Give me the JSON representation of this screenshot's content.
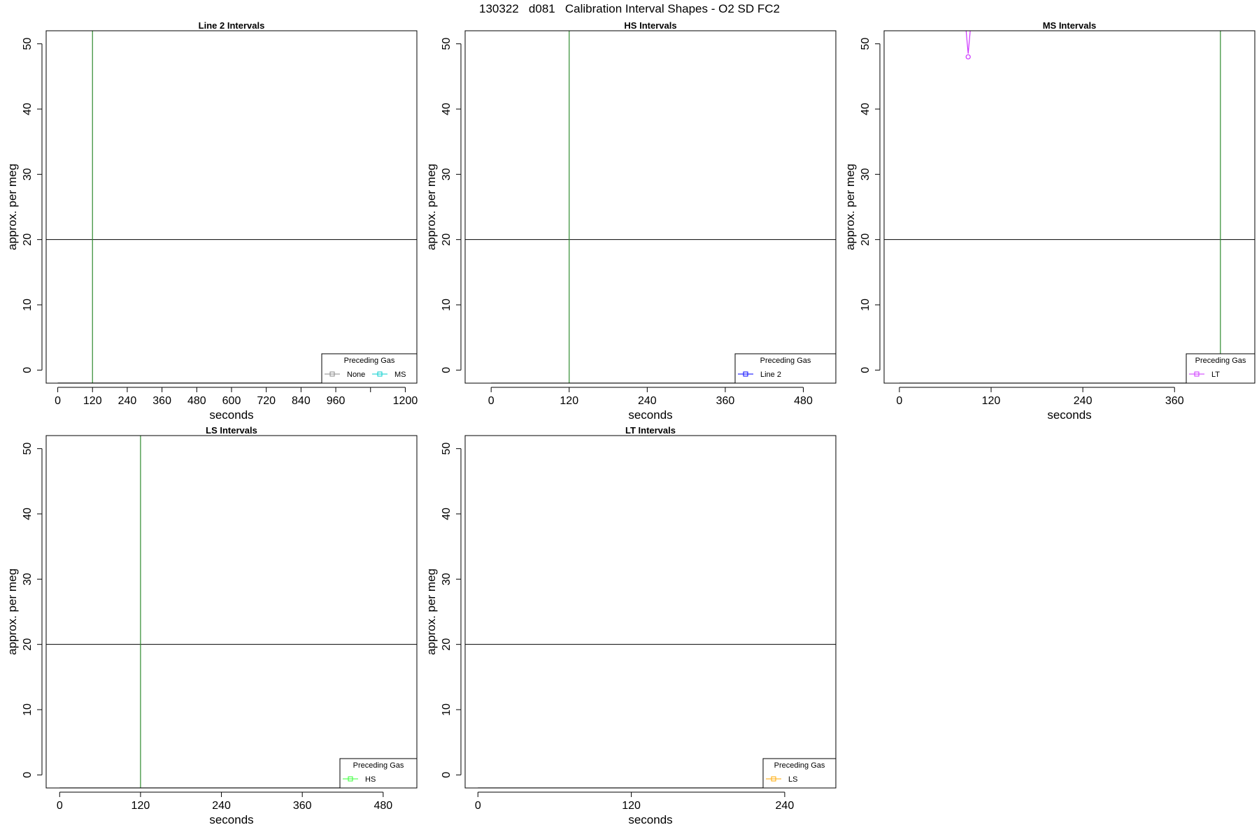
{
  "figure_title": "130322   d081   Calibration Interval Shapes - O2 SD FC2",
  "chart_data": [
    {
      "type": "line",
      "title": "Line 2 Intervals",
      "xlabel": "seconds",
      "ylabel": "approx. per meg",
      "xlim": [
        -40,
        1240
      ],
      "ylim": [
        -2,
        52
      ],
      "xticks": [
        0,
        120,
        240,
        360,
        480,
        600,
        720,
        840,
        960,
        1080,
        1200
      ],
      "xtick_labels": [
        "0",
        "120",
        "240",
        "360",
        "480",
        "600",
        "720",
        "840",
        "960",
        "",
        "1200"
      ],
      "yticks": [
        0,
        10,
        20,
        30,
        40,
        50
      ],
      "ytick_labels": [
        "0",
        "10",
        "20",
        "30",
        "40",
        "50"
      ],
      "hline": 20,
      "vline": 120,
      "series": [
        {
          "name": "None",
          "color": "#888888",
          "x": [
            0,
            1200
          ],
          "y": [
            -2,
            -2
          ]
        },
        {
          "name": "MS",
          "color": "#00cccc",
          "x": [
            0,
            1200
          ],
          "y": [
            -2,
            -2
          ]
        }
      ],
      "legend": {
        "title": "Preceding Gas",
        "position": "bottom-right",
        "entries": [
          "None",
          "MS"
        ]
      }
    },
    {
      "type": "line",
      "title": "HS Intervals",
      "xlabel": "seconds",
      "ylabel": "approx. per meg",
      "xlim": [
        -40,
        530
      ],
      "ylim": [
        -2,
        52
      ],
      "xticks": [
        0,
        120,
        240,
        360,
        480
      ],
      "xtick_labels": [
        "0",
        "120",
        "240",
        "360",
        "480"
      ],
      "yticks": [
        0,
        10,
        20,
        30,
        40,
        50
      ],
      "ytick_labels": [
        "0",
        "10",
        "20",
        "30",
        "40",
        "50"
      ],
      "hline": 20,
      "vline": 120,
      "series": [
        {
          "name": "Line 2",
          "color": "#0000ff",
          "x": [
            0,
            530
          ],
          "y": [
            -2,
            -2
          ]
        }
      ],
      "legend": {
        "title": "Preceding Gas",
        "position": "bottom-right",
        "entries": [
          "Line 2"
        ]
      }
    },
    {
      "type": "line",
      "title": "MS Intervals",
      "xlabel": "seconds",
      "ylabel": "approx. per meg",
      "xlim": [
        -20,
        465
      ],
      "ylim": [
        -2,
        52
      ],
      "xticks": [
        0,
        120,
        240,
        360
      ],
      "xtick_labels": [
        "0",
        "120",
        "240",
        "360"
      ],
      "yticks": [
        0,
        10,
        20,
        30,
        40,
        50
      ],
      "ytick_labels": [
        "0",
        "10",
        "20",
        "30",
        "40",
        "50"
      ],
      "hline": 20,
      "vline": 420,
      "series": [
        {
          "name": "LT",
          "color": "#cc33ff",
          "x": [
            0,
            465
          ],
          "y": [
            -2,
            -2
          ],
          "spike": {
            "x": [
              85,
              90,
              95
            ],
            "y": [
              55,
              48.5,
              55
            ],
            "marker": {
              "x": 90,
              "y": 48
            }
          }
        }
      ],
      "legend": {
        "title": "Preceding Gas",
        "position": "bottom-right",
        "entries": [
          "LT"
        ]
      }
    },
    {
      "type": "line",
      "title": "LS Intervals",
      "xlabel": "seconds",
      "ylabel": "approx. per meg",
      "xlim": [
        -20,
        530
      ],
      "ylim": [
        -2,
        52
      ],
      "xticks": [
        0,
        120,
        240,
        360,
        480
      ],
      "xtick_labels": [
        "0",
        "120",
        "240",
        "360",
        "480"
      ],
      "yticks": [
        0,
        10,
        20,
        30,
        40,
        50
      ],
      "ytick_labels": [
        "0",
        "10",
        "20",
        "30",
        "40",
        "50"
      ],
      "hline": 20,
      "vline": 120,
      "series": [
        {
          "name": "HS",
          "color": "#33ff33",
          "x": [
            0,
            530
          ],
          "y": [
            -2,
            -2
          ]
        }
      ],
      "legend": {
        "title": "Preceding Gas",
        "position": "bottom-right",
        "entries": [
          "HS"
        ]
      }
    },
    {
      "type": "line",
      "title": "LT Intervals",
      "xlabel": "seconds",
      "ylabel": "approx. per meg",
      "xlim": [
        -10,
        280
      ],
      "ylim": [
        -2,
        52
      ],
      "xticks": [
        0,
        120,
        240
      ],
      "xtick_labels": [
        "0",
        "120",
        "240"
      ],
      "yticks": [
        0,
        10,
        20,
        30,
        40,
        50
      ],
      "ytick_labels": [
        "0",
        "10",
        "20",
        "30",
        "40",
        "50"
      ],
      "hline": 20,
      "vline": null,
      "series": [
        {
          "name": "LS",
          "color": "#ffaa00",
          "x": [
            0,
            280
          ],
          "y": [
            -2,
            -2
          ]
        }
      ],
      "legend": {
        "title": "Preceding Gas",
        "position": "bottom-right",
        "entries": [
          "LS"
        ]
      }
    }
  ]
}
